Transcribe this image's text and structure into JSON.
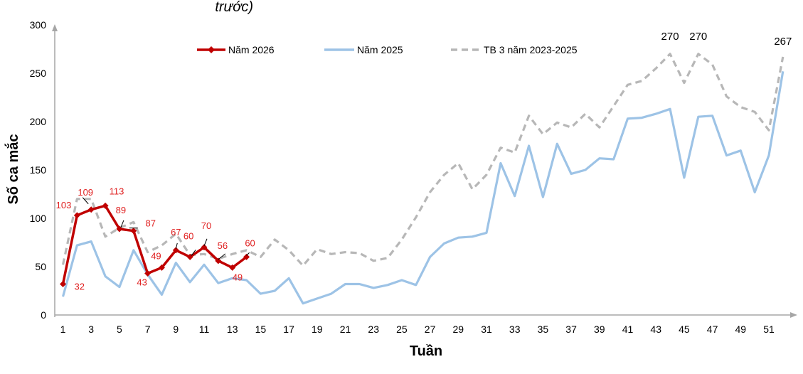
{
  "top_fragment": "trước)",
  "chart_data": {
    "type": "line",
    "title": "",
    "xlabel": "Tuần",
    "ylabel": "Số ca mắc",
    "xlim": [
      1,
      52
    ],
    "ylim": [
      0,
      300
    ],
    "yticks": [
      "0",
      "50",
      "100",
      "150",
      "200",
      "250",
      "300"
    ],
    "xticks": [
      "1",
      "3",
      "5",
      "7",
      "9",
      "11",
      "13",
      "15",
      "17",
      "19",
      "21",
      "23",
      "25",
      "27",
      "29",
      "31",
      "33",
      "35",
      "37",
      "39",
      "41",
      "43",
      "45",
      "47",
      "49",
      "51"
    ],
    "grid": false,
    "legend": "top",
    "series": [
      {
        "name": "Năm 2026",
        "color": "#c00000",
        "style": "solid-marker",
        "x": [
          1,
          2,
          3,
          4,
          5,
          6,
          7,
          8,
          9,
          10,
          11,
          12,
          13,
          14
        ],
        "values": [
          32,
          103,
          109,
          113,
          89,
          87,
          43,
          49,
          67,
          60,
          70,
          56,
          49,
          60
        ]
      },
      {
        "name": "Năm 2025",
        "color": "#9dc3e6",
        "style": "solid",
        "x": [
          1,
          2,
          3,
          4,
          5,
          6,
          7,
          8,
          9,
          10,
          11,
          12,
          13,
          14,
          15,
          16,
          17,
          18,
          19,
          20,
          21,
          22,
          23,
          24,
          25,
          26,
          27,
          28,
          29,
          30,
          31,
          32,
          33,
          34,
          35,
          36,
          37,
          38,
          39,
          40,
          41,
          42,
          43,
          44,
          45,
          46,
          47,
          48,
          49,
          50,
          51,
          52
        ],
        "values": [
          19,
          72,
          76,
          40,
          29,
          67,
          42,
          21,
          54,
          34,
          52,
          33,
          38,
          36,
          22,
          25,
          38,
          12,
          17,
          22,
          32,
          32,
          28,
          31,
          36,
          31,
          60,
          74,
          80,
          81,
          85,
          157,
          123,
          175,
          122,
          177,
          146,
          150,
          162,
          161,
          203,
          204,
          208,
          213,
          142,
          205,
          206,
          165,
          170,
          127,
          165,
          252
        ]
      },
      {
        "name": "TB 3 năm 2023-2025",
        "color": "#b7b7b7",
        "style": "dashed",
        "x": [
          1,
          2,
          3,
          4,
          5,
          6,
          7,
          8,
          9,
          10,
          11,
          12,
          13,
          14,
          15,
          16,
          17,
          18,
          19,
          20,
          21,
          22,
          23,
          24,
          25,
          26,
          27,
          28,
          29,
          30,
          31,
          32,
          33,
          34,
          35,
          36,
          37,
          38,
          39,
          40,
          41,
          42,
          43,
          44,
          45,
          46,
          47,
          48,
          49,
          50,
          51,
          52
        ],
        "values": [
          52,
          120,
          120,
          81,
          90,
          96,
          65,
          72,
          84,
          62,
          63,
          58,
          63,
          67,
          60,
          78,
          67,
          51,
          68,
          63,
          65,
          64,
          56,
          59,
          78,
          101,
          127,
          145,
          157,
          130,
          145,
          173,
          168,
          206,
          187,
          199,
          194,
          208,
          194,
          216,
          238,
          242,
          255,
          270,
          240,
          270,
          259,
          226,
          215,
          210,
          191,
          267
        ]
      }
    ],
    "data_labels": [
      {
        "series": 0,
        "x": 1,
        "text": "32"
      },
      {
        "series": 0,
        "x": 2,
        "text": "103"
      },
      {
        "series": 0,
        "x": 3,
        "text": "109"
      },
      {
        "series": 0,
        "x": 4,
        "text": "113"
      },
      {
        "series": 0,
        "x": 5,
        "text": "89"
      },
      {
        "series": 0,
        "x": 6,
        "text": "87"
      },
      {
        "series": 0,
        "x": 7,
        "text": "43"
      },
      {
        "series": 0,
        "x": 8,
        "text": "49"
      },
      {
        "series": 0,
        "x": 9,
        "text": "67"
      },
      {
        "series": 0,
        "x": 10,
        "text": "60"
      },
      {
        "series": 0,
        "x": 11,
        "text": "70"
      },
      {
        "series": 0,
        "x": 12,
        "text": "56"
      },
      {
        "series": 0,
        "x": 13,
        "text": "49"
      },
      {
        "series": 0,
        "x": 14,
        "text": "60"
      },
      {
        "series": 2,
        "x": 44,
        "text": "270"
      },
      {
        "series": 2,
        "x": 46,
        "text": "270"
      },
      {
        "series": 2,
        "x": 52,
        "text": "267"
      }
    ]
  }
}
